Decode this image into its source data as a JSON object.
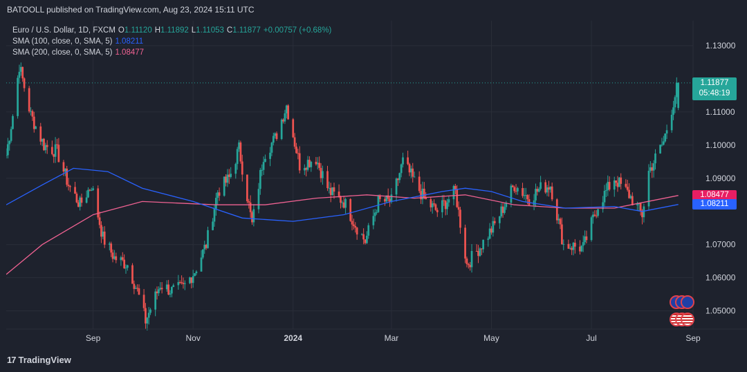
{
  "publisher": "BATOOLL published on TradingView.com, Aug 23, 2024 15:11 UTC",
  "legend": {
    "symbol": "Euro / U.S. Dollar, 1D, FXCM",
    "o_label": "O",
    "o_value": "1.11120",
    "h_label": "H",
    "h_value": "1.11892",
    "l_label": "L",
    "l_value": "1.11053",
    "c_label": "C",
    "c_value": "1.11877",
    "change": "+0.00757 (+0.68%)",
    "sma100_label": "SMA (100, close, 0, SMA, 5)",
    "sma100_value": "1.08211",
    "sma200_label": "SMA (200, close, 0, SMA, 5)",
    "sma200_value": "1.08477"
  },
  "price_tags": {
    "last_price": "1.11877",
    "countdown": "05:48:19",
    "sma200": "1.08477",
    "sma100": "1.08211"
  },
  "footer_logo": "TradingView",
  "colors": {
    "background": "#1e222d",
    "up": "#26a69a",
    "down": "#ef5350",
    "sma100": "#2962ff",
    "sma200": "#f06292",
    "grid": "#2a2e39"
  },
  "chart_data": {
    "type": "candlestick",
    "x_tick_labels": [
      "Sep",
      "Nov",
      "2024",
      "Mar",
      "May",
      "Jul",
      "Sep"
    ],
    "y_tick_labels": [
      "1.13000",
      "1.11000",
      "1.10000",
      "1.09000",
      "1.07000",
      "1.06000",
      "1.05000"
    ],
    "ylim": [
      1.0445,
      1.1375
    ],
    "grid": true,
    "x_range": [
      "2023-07-10",
      "2024-09-01"
    ],
    "anchors": [
      [
        "2023-07-10",
        1.097
      ],
      [
        "2023-07-14",
        1.109
      ],
      [
        "2023-07-18",
        1.124
      ],
      [
        "2023-07-25",
        1.109
      ],
      [
        "2023-08-02",
        1.1
      ],
      [
        "2023-08-10",
        1.098
      ],
      [
        "2023-08-17",
        1.088
      ],
      [
        "2023-08-24",
        1.082
      ],
      [
        "2023-08-31",
        1.088
      ],
      [
        "2023-09-07",
        1.072
      ],
      [
        "2023-09-14",
        1.066
      ],
      [
        "2023-09-22",
        1.064
      ],
      [
        "2023-09-28",
        1.056
      ],
      [
        "2023-10-03",
        1.047
      ],
      [
        "2023-10-12",
        1.058
      ],
      [
        "2023-10-19",
        1.056
      ],
      [
        "2023-10-26",
        1.057
      ],
      [
        "2023-11-02",
        1.062
      ],
      [
        "2023-11-09",
        1.07
      ],
      [
        "2023-11-16",
        1.086
      ],
      [
        "2023-11-23",
        1.09
      ],
      [
        "2023-11-29",
        1.099
      ],
      [
        "2023-12-07",
        1.076
      ],
      [
        "2023-12-14",
        1.097
      ],
      [
        "2023-12-21",
        1.102
      ],
      [
        "2023-12-28",
        1.112
      ],
      [
        "2024-01-05",
        1.094
      ],
      [
        "2024-01-15",
        1.096
      ],
      [
        "2024-01-23",
        1.086
      ],
      [
        "2024-02-01",
        1.083
      ],
      [
        "2024-02-08",
        1.076
      ],
      [
        "2024-02-14",
        1.071
      ],
      [
        "2024-02-22",
        1.083
      ],
      [
        "2024-03-01",
        1.083
      ],
      [
        "2024-03-08",
        1.095
      ],
      [
        "2024-03-15",
        1.089
      ],
      [
        "2024-03-22",
        1.083
      ],
      [
        "2024-03-29",
        1.08
      ],
      [
        "2024-04-09",
        1.086
      ],
      [
        "2024-04-16",
        1.064
      ],
      [
        "2024-04-25",
        1.07
      ],
      [
        "2024-05-03",
        1.076
      ],
      [
        "2024-05-15",
        1.088
      ],
      [
        "2024-05-24",
        1.084
      ],
      [
        "2024-05-31",
        1.087
      ],
      [
        "2024-06-06",
        1.088
      ],
      [
        "2024-06-14",
        1.07
      ],
      [
        "2024-06-26",
        1.069
      ],
      [
        "2024-07-05",
        1.082
      ],
      [
        "2024-07-15",
        1.09
      ],
      [
        "2024-07-24",
        1.085
      ],
      [
        "2024-08-01",
        1.079
      ],
      [
        "2024-08-05",
        1.092
      ],
      [
        "2024-08-14",
        1.101
      ],
      [
        "2024-08-21",
        1.115
      ],
      [
        "2024-08-23",
        1.1188
      ]
    ],
    "last_candle": {
      "date": "2024-08-23",
      "open": 1.1112,
      "high": 1.11892,
      "low": 1.11053,
      "close": 1.11877
    },
    "sma100": [
      [
        "2023-07-10",
        1.082
      ],
      [
        "2023-08-01",
        1.088
      ],
      [
        "2023-08-20",
        1.093
      ],
      [
        "2023-09-10",
        1.092
      ],
      [
        "2023-10-01",
        1.087
      ],
      [
        "2023-11-01",
        1.083
      ],
      [
        "2023-12-01",
        1.078
      ],
      [
        "2024-01-01",
        1.077
      ],
      [
        "2024-02-01",
        1.079
      ],
      [
        "2024-03-01",
        1.083
      ],
      [
        "2024-04-01",
        1.086
      ],
      [
        "2024-04-15",
        1.087
      ],
      [
        "2024-05-01",
        1.086
      ],
      [
        "2024-05-20",
        1.083
      ],
      [
        "2024-06-15",
        1.081
      ],
      [
        "2024-07-15",
        1.0815
      ],
      [
        "2024-08-01",
        1.08
      ],
      [
        "2024-08-23",
        1.0821
      ]
    ],
    "sma200": [
      [
        "2023-07-10",
        1.061
      ],
      [
        "2023-08-01",
        1.07
      ],
      [
        "2023-09-01",
        1.079
      ],
      [
        "2023-10-01",
        1.083
      ],
      [
        "2023-11-15",
        1.082
      ],
      [
        "2023-12-15",
        1.082
      ],
      [
        "2024-01-15",
        1.084
      ],
      [
        "2024-02-15",
        1.085
      ],
      [
        "2024-03-15",
        1.084
      ],
      [
        "2024-04-15",
        1.085
      ],
      [
        "2024-05-15",
        1.082
      ],
      [
        "2024-06-15",
        1.081
      ],
      [
        "2024-07-15",
        1.081
      ],
      [
        "2024-08-23",
        1.0848
      ]
    ]
  }
}
